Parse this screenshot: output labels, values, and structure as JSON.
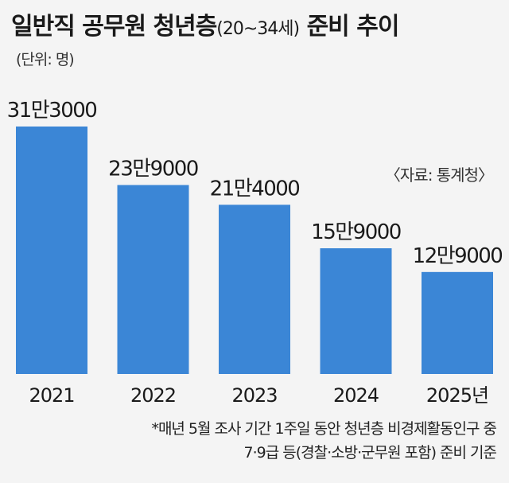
{
  "title": {
    "main": "일반직 공무원 청년층",
    "sub": "(20~34세)",
    "tail": "준비 추이"
  },
  "unit": "(단위: 명)",
  "source": "〈자료: 통계청〉",
  "notes": [
    "*매년 5월 조사 기간 1주일 동안 청년층 비경제활동인구 중",
    "7·9급 등(경찰·소방·군무원 포함) 준비 기준"
  ],
  "colors": {
    "bar": "#3b86d6",
    "background": "#f4f4f4"
  },
  "chart_data": {
    "type": "bar",
    "categories": [
      "2021",
      "2022",
      "2023",
      "2024",
      "2025년"
    ],
    "values": [
      313000,
      239000,
      214000,
      159000,
      129000
    ],
    "value_labels": [
      "31만3000",
      "23만9000",
      "21만4000",
      "15만9000",
      "12만9000"
    ],
    "title": "일반직 공무원 청년층(20~34세) 준비 추이",
    "xlabel": "",
    "ylabel": "",
    "ylim": [
      0,
      313000
    ],
    "grid": false,
    "legend": "none"
  }
}
